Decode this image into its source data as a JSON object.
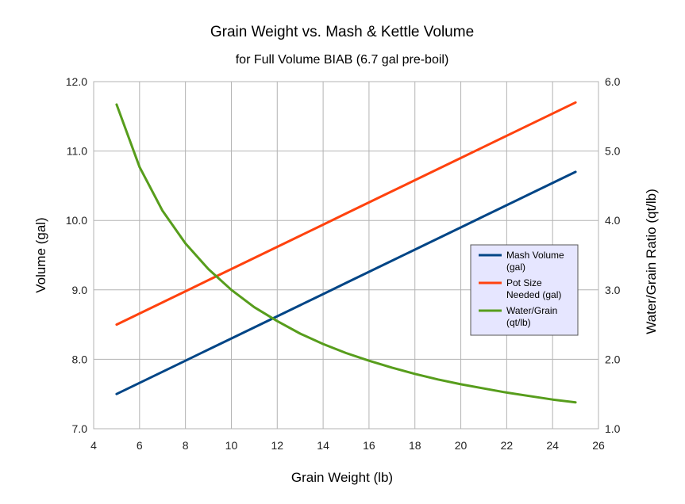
{
  "chart_data": {
    "type": "line",
    "title": "Grain Weight vs. Mash & Kettle Volume",
    "subtitle": "for Full Volume BIAB (6.7 gal pre-boil)",
    "xlabel": "Grain Weight (lb)",
    "ylabel": "Volume (gal)",
    "y2label": "Water/Grain Ratio (qt/lb)",
    "xlim": [
      4,
      26
    ],
    "ylim": [
      7.0,
      12.0
    ],
    "y2lim": [
      1.0,
      6.0
    ],
    "x_ticks": [
      "4",
      "6",
      "8",
      "10",
      "12",
      "14",
      "16",
      "18",
      "20",
      "22",
      "24",
      "26"
    ],
    "y_ticks": [
      "7.0",
      "8.0",
      "9.0",
      "10.0",
      "11.0",
      "12.0"
    ],
    "y2_ticks": [
      "1.0",
      "2.0",
      "3.0",
      "4.0",
      "5.0",
      "6.0"
    ],
    "grid": true,
    "legend_position": "right",
    "x": [
      5,
      6,
      7,
      8,
      9,
      10,
      11,
      12,
      13,
      14,
      15,
      16,
      17,
      18,
      19,
      20,
      21,
      22,
      23,
      24,
      25
    ],
    "series": [
      {
        "name": "Mash Volume (gal)",
        "axis": "left",
        "color": "#004586",
        "values": [
          7.5,
          7.66,
          7.82,
          7.98,
          8.14,
          8.3,
          8.46,
          8.62,
          8.78,
          8.94,
          9.1,
          9.26,
          9.42,
          9.58,
          9.74,
          9.9,
          10.06,
          10.22,
          10.38,
          10.54,
          10.7
        ]
      },
      {
        "name": "Pot Size Needed (gal)",
        "axis": "left",
        "color": "#ff420e",
        "values": [
          8.5,
          8.66,
          8.82,
          8.98,
          9.14,
          9.3,
          9.46,
          9.62,
          9.78,
          9.94,
          10.1,
          10.26,
          10.42,
          10.58,
          10.74,
          10.9,
          11.06,
          11.22,
          11.38,
          11.54,
          11.7
        ]
      },
      {
        "name": "Water/Grain (qt/lb)",
        "axis": "right",
        "color": "#579d1c",
        "values": [
          5.67,
          4.77,
          4.14,
          3.67,
          3.3,
          3.0,
          2.75,
          2.55,
          2.37,
          2.22,
          2.09,
          1.98,
          1.88,
          1.79,
          1.71,
          1.64,
          1.58,
          1.52,
          1.47,
          1.42,
          1.38
        ]
      }
    ],
    "legend_lines": [
      [
        "Mash Volume",
        "(gal)"
      ],
      [
        "Pot Size",
        "Needed (gal)"
      ],
      [
        "Water/Grain",
        "(qt/lb)"
      ]
    ]
  }
}
